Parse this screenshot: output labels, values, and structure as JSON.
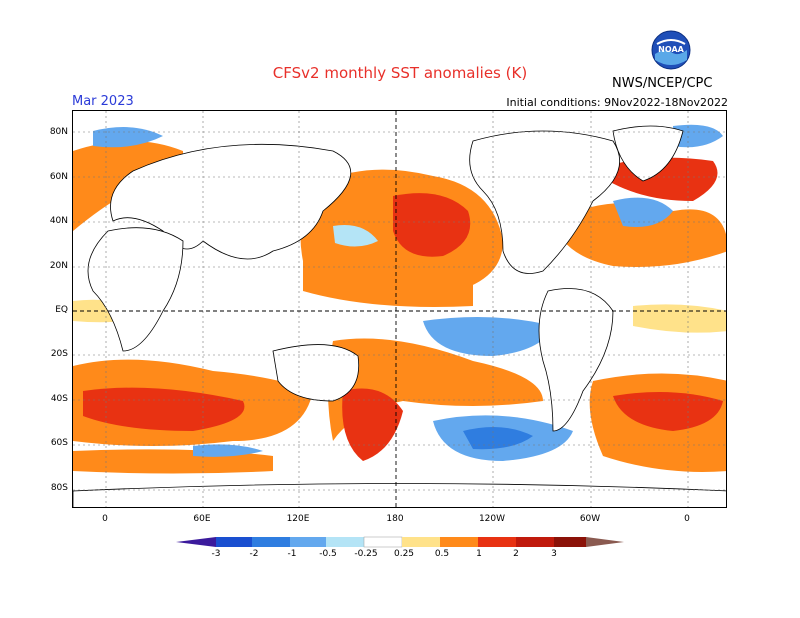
{
  "header": {
    "title": "CFSv2 monthly SST anomalies (K)",
    "month": "Mar 2023",
    "initial_conditions": "Initial conditions: 9Nov2022-18Nov2022",
    "agency": "NWS/NCEP/CPC",
    "logo_text": "NOAA"
  },
  "axes": {
    "lat_labels": [
      "80N",
      "60N",
      "40N",
      "20N",
      "EQ",
      "20S",
      "40S",
      "60S",
      "80S"
    ],
    "lon_labels": [
      "0",
      "60E",
      "120E",
      "180",
      "120W",
      "60W",
      "0"
    ]
  },
  "colorbar": {
    "labels": [
      "-3",
      "-2",
      "-1",
      "-0.5",
      "-0.25",
      "0.25",
      "0.5",
      "1",
      "2",
      "3"
    ],
    "colors": [
      "#3b1a9c",
      "#1a4fd0",
      "#2f7de0",
      "#63a8ee",
      "#b4e4f6",
      "#ffffff",
      "#ffe28a",
      "#ff8a1a",
      "#e83212",
      "#c01a0c",
      "#8b1208",
      "#8a5a50"
    ]
  }
}
